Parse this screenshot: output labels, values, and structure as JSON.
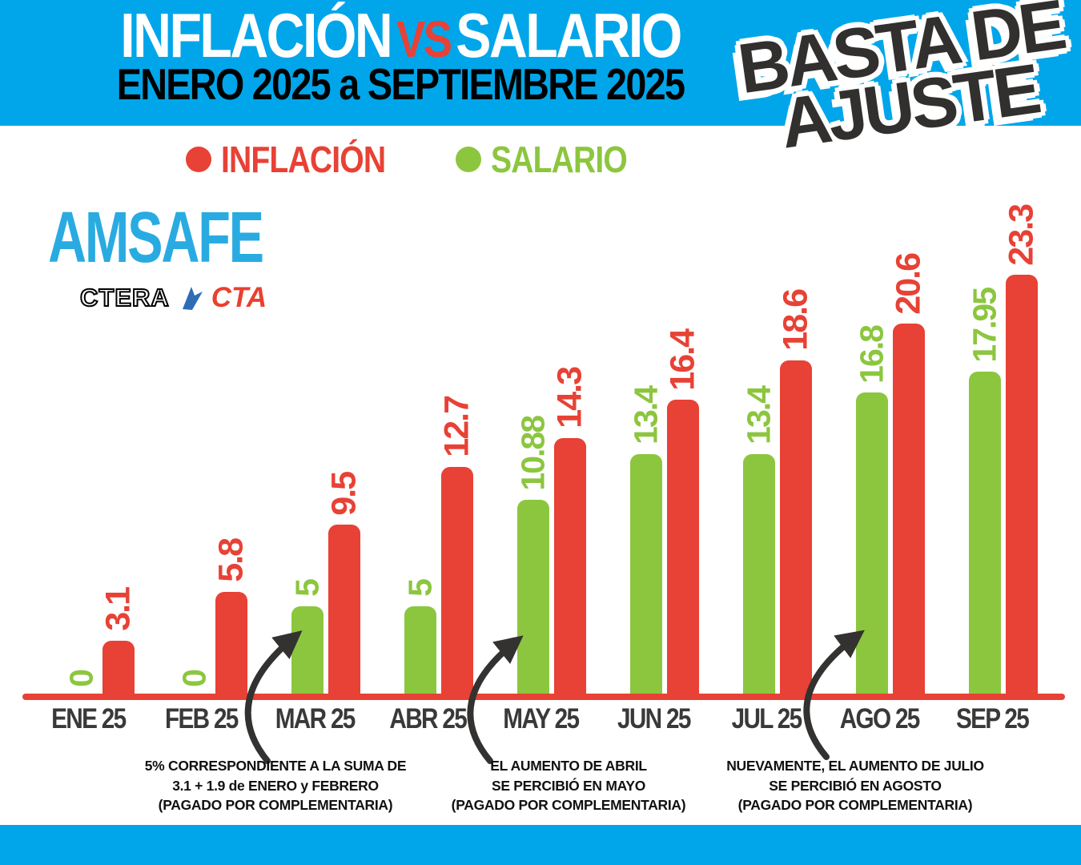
{
  "header": {
    "title_left": "INFLACIÓN",
    "title_vs": "VS",
    "title_right": "SALARIO",
    "subtitle": "ENERO 2025 a SEPTIEMBRE 2025"
  },
  "sticker": {
    "line1": "BASTA DE",
    "line2": "AJUSTE"
  },
  "legend": [
    {
      "key": "inflacion",
      "label": "INFLACIÓN",
      "color": "#E84135"
    },
    {
      "key": "salario",
      "label": "SALARIO",
      "color": "#8CC63F"
    }
  ],
  "logos": {
    "amsafe": "AMSAFE",
    "ctera": "CTERA",
    "cta": "CTA"
  },
  "chart_data": {
    "type": "bar",
    "title": "INFLACIÓN VS SALARIO",
    "subtitle": "ENERO 2025 a SEPTIEMBRE 2025",
    "categories": [
      "ENE 25",
      "FEB 25",
      "MAR 25",
      "ABR 25",
      "MAY 25",
      "JUN 25",
      "JUL 25",
      "AGO 25",
      "SEP 25"
    ],
    "series": [
      {
        "key": "salario",
        "name": "SALARIO",
        "color": "#8CC63F",
        "values": [
          0,
          0,
          5,
          5,
          10.88,
          13.4,
          13.4,
          16.8,
          17.95
        ]
      },
      {
        "key": "inflacion",
        "name": "INFLACIÓN",
        "color": "#E84135",
        "values": [
          3.1,
          5.8,
          9.5,
          12.7,
          14.3,
          16.4,
          18.6,
          20.6,
          23.3
        ]
      }
    ],
    "ylim": [
      0,
      24
    ],
    "grid": false,
    "legend_position": "top",
    "value_labels_rotated": true
  },
  "annotations": [
    {
      "target": "MAR 25",
      "lines": [
        "5% CORRESPONDIENTE A LA SUMA DE",
        "3.1 + 1.9 de ENERO y FEBRERO",
        "(PAGADO POR COMPLEMENTARIA)"
      ]
    },
    {
      "target": "MAY 25",
      "lines": [
        "EL AUMENTO DE ABRIL",
        "SE PERCIBIÓ EN MAYO",
        "(PAGADO POR COMPLEMENTARIA)"
      ]
    },
    {
      "target": "AGO 25",
      "lines": [
        "NUEVAMENTE, EL AUMENTO DE JULIO",
        "SE PERCIBIÓ EN AGOSTO",
        "(PAGADO POR COMPLEMENTARIA)"
      ]
    }
  ],
  "colors": {
    "band_blue": "#00A6E9",
    "inflacion_red": "#E84135",
    "salario_green": "#8CC63F",
    "logo_blue": "#29ABE2",
    "month_label": "#3A3938",
    "arrow": "#333230"
  }
}
